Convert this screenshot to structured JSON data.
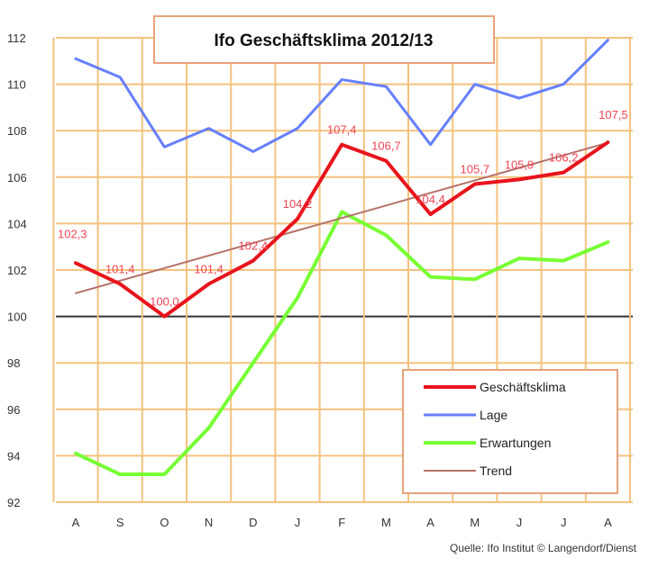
{
  "chart_data": {
    "type": "line",
    "title": "Ifo Geschäftsklima 2012/13",
    "source": "Quelle: Ifo Institut © Langendorf/Dienst",
    "categories": [
      "A",
      "S",
      "O",
      "N",
      "D",
      "J",
      "F",
      "M",
      "A",
      "M",
      "J",
      "J",
      "A"
    ],
    "ylim": [
      92,
      112
    ],
    "yticks": [
      "112",
      "110",
      "108",
      "106",
      "104",
      "102",
      "100",
      "98",
      "96",
      "94",
      "92"
    ],
    "grid": true,
    "legend_position": "bottom-right",
    "series": [
      {
        "name": "Geschäftsklima",
        "color": "#e8141c",
        "width": 4,
        "values": [
          102.3,
          101.4,
          100.0,
          101.4,
          102.4,
          104.2,
          107.4,
          106.7,
          104.4,
          105.7,
          105.9,
          106.2,
          107.5
        ]
      },
      {
        "name": "Lage",
        "color": "#6680ff",
        "width": 3,
        "values": [
          111.1,
          110.3,
          107.3,
          108.1,
          107.1,
          108.1,
          110.2,
          109.9,
          107.4,
          110.0,
          109.4,
          110.0,
          111.9
        ]
      },
      {
        "name": "Erwartungen",
        "color": "#77ff33",
        "width": 4,
        "values": [
          94.1,
          93.2,
          93.2,
          95.2,
          98.0,
          100.8,
          104.5,
          103.5,
          101.7,
          101.6,
          102.5,
          102.4,
          103.2
        ]
      },
      {
        "name": "Trend",
        "color": "#b5736a",
        "width": 2,
        "values": [
          101.0,
          101.54,
          102.08,
          102.62,
          103.16,
          103.7,
          104.24,
          104.78,
          105.32,
          105.86,
          106.4,
          106.94,
          107.48
        ]
      }
    ],
    "data_labels": [
      {
        "text": "102,3",
        "index": 0,
        "value": 102.3
      },
      {
        "text": "101,4",
        "index": 1,
        "value": 101.4
      },
      {
        "text": "100,0",
        "index": 2,
        "value": 100.0
      },
      {
        "text": "101,4",
        "index": 3,
        "value": 101.4
      },
      {
        "text": "102,4",
        "index": 4,
        "value": 102.4
      },
      {
        "text": "104,2",
        "index": 5,
        "value": 104.2
      },
      {
        "text": "107,4",
        "index": 6,
        "value": 107.4
      },
      {
        "text": "106,7",
        "index": 7,
        "value": 106.7
      },
      {
        "text": "104,4",
        "index": 8,
        "value": 104.4
      },
      {
        "text": "105,7",
        "index": 9,
        "value": 105.7
      },
      {
        "text": "105,9",
        "index": 10,
        "value": 105.9
      },
      {
        "text": "106,2",
        "index": 11,
        "value": 106.2
      },
      {
        "text": "107,5",
        "index": 12,
        "value": 107.5
      }
    ],
    "colors": {
      "grid": "#f4c27e",
      "baseline": "#333333",
      "title_border": "#e8a27a",
      "legend_border": "#e8a27a"
    }
  }
}
